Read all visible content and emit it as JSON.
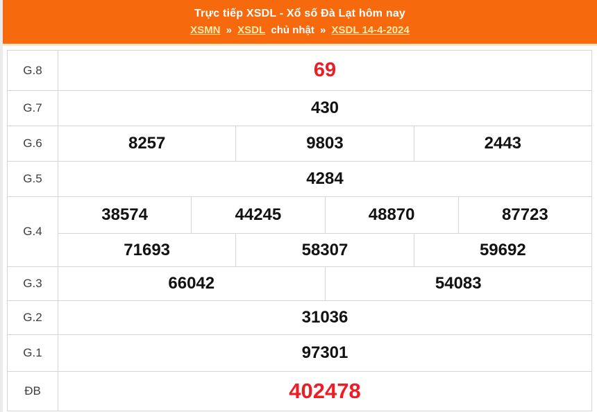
{
  "colors": {
    "header_bg": "#F6690C",
    "header_text": "#FFFFFF",
    "link_yellow": "#FFE9A6",
    "highlight_red": "#EE1C25",
    "number_black": "#121212",
    "border_gray": "#D5D5D5"
  },
  "header": {
    "title": "Trực tiếp XSDL - Xổ số Đà Lạt hôm nay",
    "breadcrumb": {
      "link_xsmn": "XSMN",
      "sep1": "»",
      "link_xsdl": "XSDL",
      "text_day": "chủ nhật",
      "sep2": "»",
      "link_date": "XSDL 14-4-2024"
    }
  },
  "results": {
    "g8": {
      "label": "G.8",
      "values": [
        "69"
      ]
    },
    "g7": {
      "label": "G.7",
      "values": [
        "430"
      ]
    },
    "g6": {
      "label": "G.6",
      "values": [
        "8257",
        "9803",
        "2443"
      ]
    },
    "g5": {
      "label": "G.5",
      "values": [
        "4284"
      ]
    },
    "g4": {
      "label": "G.4",
      "line1": [
        "38574",
        "44245",
        "48870",
        "87723"
      ],
      "line2": [
        "71693",
        "58307",
        "59692"
      ]
    },
    "g3": {
      "label": "G.3",
      "values": [
        "66042",
        "54083"
      ]
    },
    "g2": {
      "label": "G.2",
      "values": [
        "31036"
      ]
    },
    "g1": {
      "label": "G.1",
      "values": [
        "97301"
      ]
    },
    "db": {
      "label": "ĐB",
      "values": [
        "402478"
      ]
    }
  }
}
